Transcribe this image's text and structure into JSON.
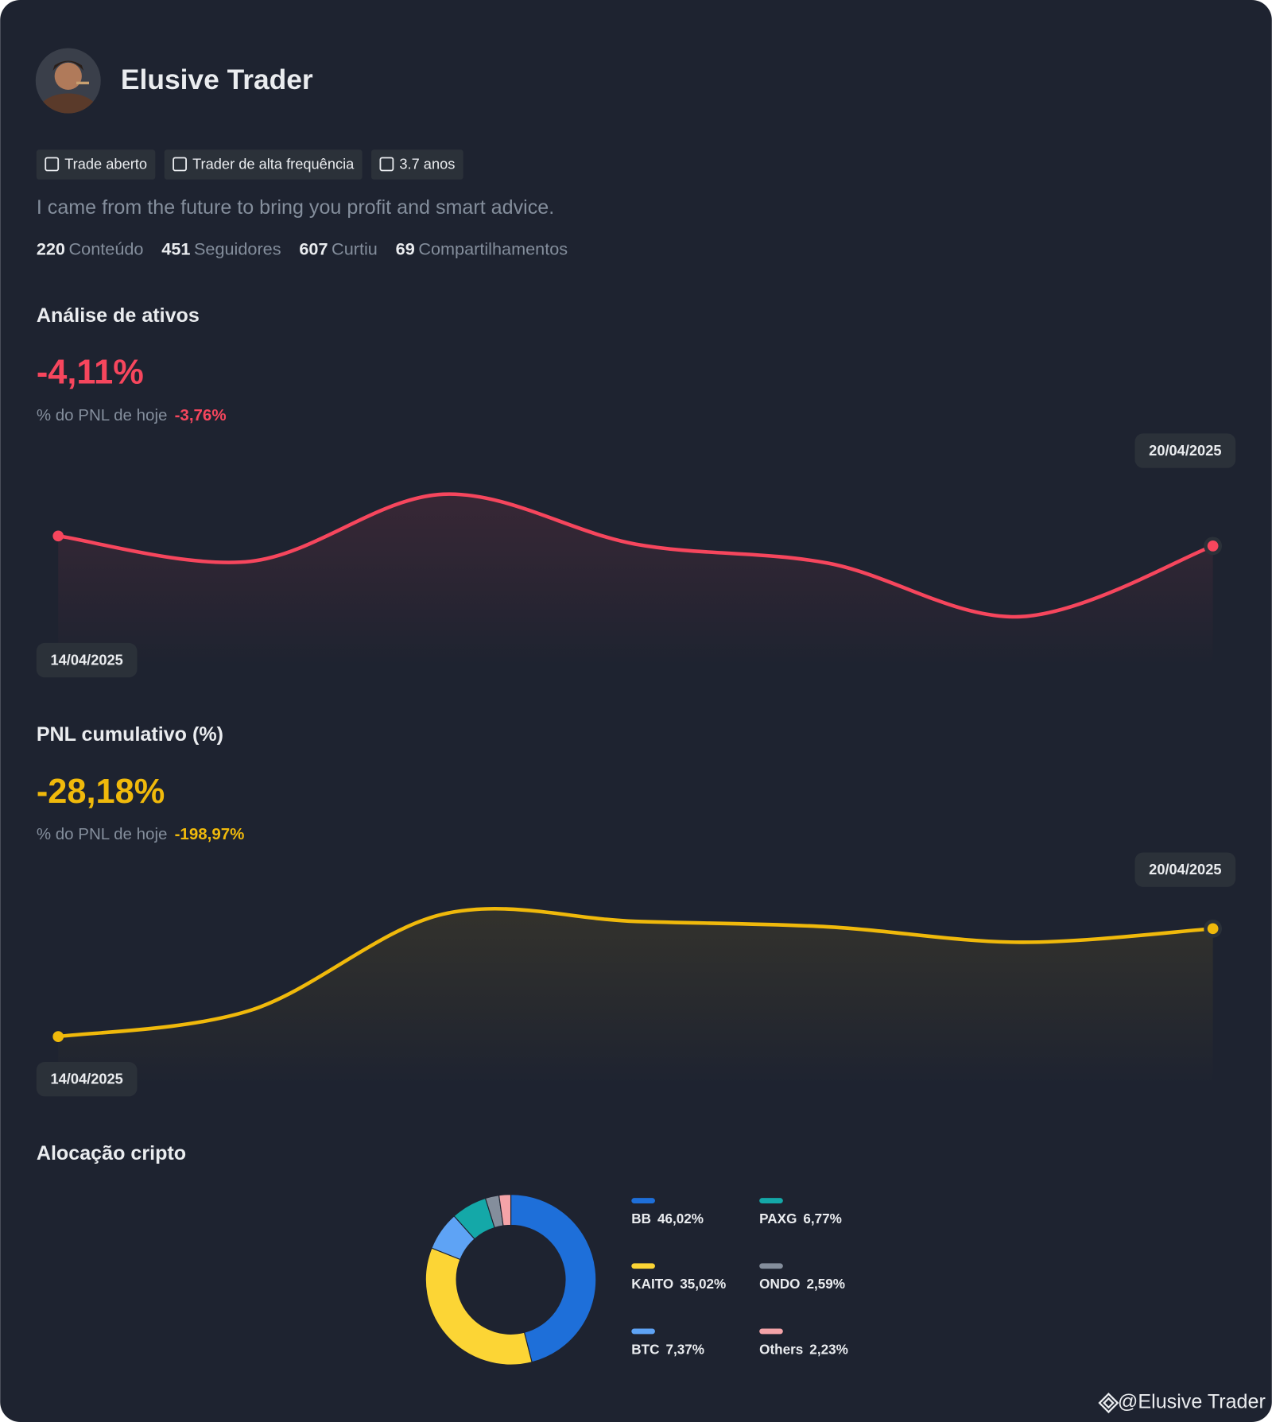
{
  "profile": {
    "name": "Elusive Trader",
    "tags": [
      "Trade aberto",
      "Trader de alta frequência",
      "3.7 anos"
    ],
    "bio": "I came from the future to bring you profit and smart advice.",
    "stats": [
      {
        "value": 220,
        "label": "Conteúdo"
      },
      {
        "value": 451,
        "label": "Seguidores"
      },
      {
        "value": 607,
        "label": "Curtiu"
      },
      {
        "value": 69,
        "label": "Compartilhamentos"
      }
    ],
    "watermark": "@Elusive Trader"
  },
  "chart_data": [
    {
      "type": "line",
      "title": "Análise de ativos",
      "headline": "-4,11%",
      "subtitle": "% do PNL de hoje",
      "subtitle_value": "-3,76%",
      "categories": [
        "14/04/2025",
        null,
        null,
        null,
        null,
        null,
        "20/04/2025"
      ],
      "values": [
        0,
        -2.8,
        4.6,
        -0.9,
        -3.0,
        -8.9,
        -1.1
      ],
      "ylim": [
        -10,
        6
      ],
      "color": "#f6465d"
    },
    {
      "type": "line",
      "title": "PNL cumulativo (%)",
      "headline": "-28,18%",
      "subtitle": "% do PNL de hoje",
      "subtitle_value": "-198,97%",
      "categories": [
        "14/04/2025",
        null,
        null,
        null,
        null,
        null,
        "20/04/2025"
      ],
      "values": [
        0,
        2.9,
        13.5,
        12.7,
        12.1,
        10.4,
        11.9
      ],
      "ylim": [
        -1,
        15
      ],
      "color": "#f0b90b"
    },
    {
      "type": "pie",
      "title": "Alocação cripto",
      "categories": [
        "BB",
        "KAITO",
        "BTC",
        "PAXG",
        "ONDO",
        "Others"
      ],
      "values": [
        46.02,
        35.02,
        7.37,
        6.77,
        2.59,
        2.23
      ],
      "value_labels": [
        "46,02%",
        "35,02%",
        "7,37%",
        "6,77%",
        "2,59%",
        "2,23%"
      ],
      "colors": [
        "#1e6fd9",
        "#fcd535",
        "#5ea3f5",
        "#14a8a8",
        "#848e9c",
        "#f4a3a8"
      ]
    }
  ]
}
